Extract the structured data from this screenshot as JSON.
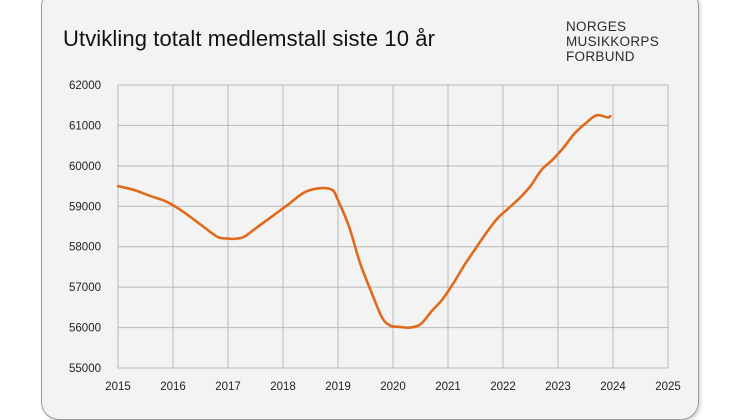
{
  "chart_data": {
    "type": "line",
    "title": "Utvikling totalt medlemstall siste 10 år",
    "xlabel": "",
    "ylabel": "",
    "xlim": [
      2015,
      2025
    ],
    "ylim": [
      55000,
      62000
    ],
    "xticks": [
      2015,
      2016,
      2017,
      2018,
      2019,
      2020,
      2021,
      2022,
      2023,
      2024,
      2025
    ],
    "yticks": [
      55000,
      56000,
      57000,
      58000,
      59000,
      60000,
      61000,
      62000
    ],
    "grid": true,
    "series": [
      {
        "name": "Medlemstall",
        "color": "#e06a1b",
        "x": [
          2015.0,
          2015.3,
          2015.6,
          2015.9,
          2016.2,
          2016.5,
          2016.8,
          2017.0,
          2017.15,
          2017.3,
          2017.5,
          2017.8,
          2018.1,
          2018.4,
          2018.7,
          2018.9,
          2019.0,
          2019.2,
          2019.4,
          2019.6,
          2019.8,
          2019.95,
          2020.1,
          2020.3,
          2020.5,
          2020.7,
          2020.9,
          2021.1,
          2021.3,
          2021.5,
          2021.7,
          2021.9,
          2022.1,
          2022.3,
          2022.5,
          2022.7,
          2022.9,
          2023.1,
          2023.3,
          2023.5,
          2023.7,
          2023.9,
          2023.95
        ],
        "y": [
          59500,
          59400,
          59250,
          59100,
          58850,
          58550,
          58250,
          58200,
          58200,
          58250,
          58450,
          58750,
          59050,
          59350,
          59450,
          59400,
          59150,
          58500,
          57600,
          56900,
          56250,
          56050,
          56020,
          56000,
          56080,
          56400,
          56700,
          57100,
          57550,
          57950,
          58350,
          58700,
          58950,
          59200,
          59500,
          59900,
          60150,
          60450,
          60800,
          61050,
          61250,
          61200,
          61230
        ]
      }
    ]
  },
  "logo": {
    "lines": [
      "NORGES",
      "MUSIKKORPS",
      "FORBUND"
    ],
    "color": "#2b2b2b"
  },
  "colors": {
    "line": "#e06a1b",
    "grid": "#b8b8b8",
    "card_background": "#f3f3f3"
  }
}
